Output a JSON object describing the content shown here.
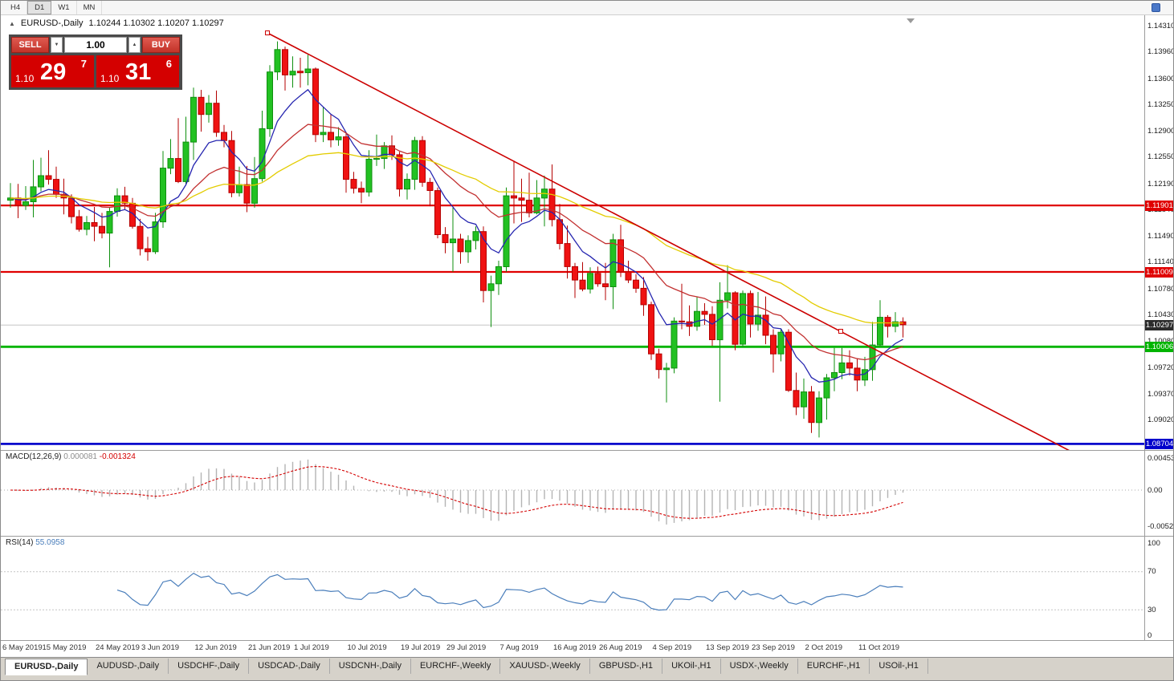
{
  "toolbar": {
    "timeframes": [
      "H4",
      "D1",
      "W1",
      "MN"
    ],
    "active_timeframe": "D1"
  },
  "chart": {
    "title": "EURUSD-,Daily",
    "ohlc": "1.10244 1.10302 1.10207 1.10297",
    "collapse_icon": "▲"
  },
  "trade_panel": {
    "sell_label": "SELL",
    "buy_label": "BUY",
    "volume": "1.00",
    "spin_up_icon": "▲",
    "spin_down_icon": "▼",
    "sell_price_prefix": "1.10",
    "sell_price_big": "29",
    "sell_price_sup": "7",
    "buy_price_prefix": "1.10",
    "buy_price_big": "31",
    "buy_price_sup": "6"
  },
  "price_axis": {
    "ticks": [
      "1.14310",
      "1.13960",
      "1.13600",
      "1.13250",
      "1.12900",
      "1.12550",
      "1.12190",
      "1.11840",
      "1.11490",
      "1.11140",
      "1.10780",
      "1.10430",
      "1.10080",
      "1.09720",
      "1.09370",
      "1.09020"
    ],
    "levels": [
      {
        "label": "1.11901",
        "price": 1.11901,
        "color": "#e00000",
        "kind": "resistance"
      },
      {
        "label": "1.11009",
        "price": 1.11009,
        "color": "#e00000",
        "kind": "resistance"
      },
      {
        "label": "1.10297",
        "price": 1.10297,
        "color": "#2b2b2b",
        "kind": "current-bid"
      },
      {
        "label": "1.10006",
        "price": 1.10006,
        "color": "#00b400",
        "kind": "support"
      },
      {
        "label": "1.08704",
        "price": 1.08704,
        "color": "#0000cc",
        "kind": "support"
      }
    ]
  },
  "macd": {
    "name": "MACD(12,26,9)",
    "value_main": "0.000081",
    "value_signal": "-0.001324",
    "axis": [
      "0.004536",
      "0.00",
      "-0.005205"
    ]
  },
  "rsi": {
    "name": "RSI(14)",
    "value": "55.0958",
    "axis": [
      "100",
      "70",
      "30",
      "0"
    ]
  },
  "date_axis": [
    {
      "label": "6 May 2019",
      "i": 0
    },
    {
      "label": "15 May 2019",
      "i": 7
    },
    {
      "label": "24 May 2019",
      "i": 14
    },
    {
      "label": "3 Jun 2019",
      "i": 20
    },
    {
      "label": "12 Jun 2019",
      "i": 27
    },
    {
      "label": "21 Jun 2019",
      "i": 34
    },
    {
      "label": "1 Jul 2019",
      "i": 40
    },
    {
      "label": "10 Jul 2019",
      "i": 47
    },
    {
      "label": "19 Jul 2019",
      "i": 54
    },
    {
      "label": "29 Jul 2019",
      "i": 60
    },
    {
      "label": "7 Aug 2019",
      "i": 67
    },
    {
      "label": "16 Aug 2019",
      "i": 74
    },
    {
      "label": "26 Aug 2019",
      "i": 80
    },
    {
      "label": "4 Sep 2019",
      "i": 87
    },
    {
      "label": "13 Sep 2019",
      "i": 94
    },
    {
      "label": "23 Sep 2019",
      "i": 100
    },
    {
      "label": "2 Oct 2019",
      "i": 107
    },
    {
      "label": "11 Oct 2019",
      "i": 114
    }
  ],
  "tabs": [
    {
      "label": "EURUSD-,Daily",
      "active": true
    },
    {
      "label": "AUDUSD-,Daily",
      "active": false
    },
    {
      "label": "USDCHF-,Daily",
      "active": false
    },
    {
      "label": "USDCAD-,Daily",
      "active": false
    },
    {
      "label": "USDCNH-,Daily",
      "active": false
    },
    {
      "label": "EURCHF-,Weekly",
      "active": false
    },
    {
      "label": "XAUUSD-,Weekly",
      "active": false
    },
    {
      "label": "GBPUSD-,H1",
      "active": false
    },
    {
      "label": "UKOil-,H1",
      "active": false
    },
    {
      "label": "USDX-,Weekly",
      "active": false
    },
    {
      "label": "EURCHF-,H1",
      "active": false
    },
    {
      "label": "USOil-,H1",
      "active": false
    }
  ],
  "chart_data": {
    "type": "candlestick",
    "symbol": "EURUSD",
    "timeframe": "Daily",
    "ohlc_current": {
      "open": 1.10244,
      "high": 1.10302,
      "low": 1.10207,
      "close": 1.10297
    },
    "y_axis_range": [
      1.086,
      1.1445
    ],
    "candles": [
      [
        1.1197,
        1.122,
        1.1187,
        1.12
      ],
      [
        1.12,
        1.1219,
        1.1173,
        1.119
      ],
      [
        1.119,
        1.1216,
        1.1184,
        1.1195
      ],
      [
        1.1195,
        1.1251,
        1.1174,
        1.1215
      ],
      [
        1.1215,
        1.1254,
        1.1209,
        1.123
      ],
      [
        1.123,
        1.1264,
        1.1218,
        1.1225
      ],
      [
        1.1225,
        1.1242,
        1.12,
        1.1205
      ],
      [
        1.1205,
        1.1226,
        1.1178,
        1.12
      ],
      [
        1.12,
        1.1205,
        1.1166,
        1.1175
      ],
      [
        1.1175,
        1.1184,
        1.1155,
        1.1158
      ],
      [
        1.1158,
        1.1176,
        1.115,
        1.1167
      ],
      [
        1.1167,
        1.1188,
        1.1142,
        1.1162
      ],
      [
        1.1162,
        1.118,
        1.1146,
        1.1153
      ],
      [
        1.1153,
        1.1188,
        1.1107,
        1.1182
      ],
      [
        1.1182,
        1.1213,
        1.1175,
        1.1203
      ],
      [
        1.1203,
        1.1215,
        1.1184,
        1.1193
      ],
      [
        1.1193,
        1.12,
        1.1159,
        1.1162
      ],
      [
        1.1162,
        1.1172,
        1.1123,
        1.1132
      ],
      [
        1.1132,
        1.1148,
        1.1116,
        1.1128
      ],
      [
        1.1128,
        1.118,
        1.1125,
        1.1168
      ],
      [
        1.1168,
        1.1263,
        1.116,
        1.124
      ],
      [
        1.124,
        1.1279,
        1.1232,
        1.1253
      ],
      [
        1.1253,
        1.1307,
        1.122,
        1.1222
      ],
      [
        1.1222,
        1.1309,
        1.1219,
        1.1275
      ],
      [
        1.1275,
        1.1348,
        1.1251,
        1.1335
      ],
      [
        1.1335,
        1.1345,
        1.1289,
        1.1312
      ],
      [
        1.1312,
        1.1338,
        1.1301,
        1.1327
      ],
      [
        1.1327,
        1.1344,
        1.1282,
        1.1288
      ],
      [
        1.1288,
        1.1298,
        1.1268,
        1.1277
      ],
      [
        1.1277,
        1.129,
        1.1201,
        1.1207
      ],
      [
        1.1207,
        1.1242,
        1.1202,
        1.1218
      ],
      [
        1.1218,
        1.1243,
        1.1181,
        1.1193
      ],
      [
        1.1193,
        1.1255,
        1.1187,
        1.1226
      ],
      [
        1.1226,
        1.1317,
        1.1222,
        1.1293
      ],
      [
        1.1293,
        1.1378,
        1.1282,
        1.1369
      ],
      [
        1.1369,
        1.141,
        1.1358,
        1.1399
      ],
      [
        1.1399,
        1.1403,
        1.1344,
        1.1365
      ],
      [
        1.1365,
        1.139,
        1.1348,
        1.137
      ],
      [
        1.137,
        1.1388,
        1.1348,
        1.1368
      ],
      [
        1.1368,
        1.1392,
        1.1351,
        1.1373
      ],
      [
        1.1373,
        1.1375,
        1.1275,
        1.1285
      ],
      [
        1.1285,
        1.1322,
        1.1275,
        1.1288
      ],
      [
        1.1288,
        1.1312,
        1.1268,
        1.1278
      ],
      [
        1.1278,
        1.1295,
        1.127,
        1.1282
      ],
      [
        1.1282,
        1.1288,
        1.1207,
        1.1225
      ],
      [
        1.1225,
        1.1235,
        1.1206,
        1.1213
      ],
      [
        1.1213,
        1.1222,
        1.1193,
        1.1208
      ],
      [
        1.1208,
        1.1264,
        1.1202,
        1.1252
      ],
      [
        1.1252,
        1.1285,
        1.1243,
        1.1253
      ],
      [
        1.1253,
        1.1275,
        1.1239,
        1.127
      ],
      [
        1.127,
        1.1284,
        1.1251,
        1.1258
      ],
      [
        1.1258,
        1.1262,
        1.1202,
        1.1212
      ],
      [
        1.1212,
        1.1233,
        1.1198,
        1.1225
      ],
      [
        1.1225,
        1.1282,
        1.1211,
        1.1277
      ],
      [
        1.1277,
        1.1283,
        1.1215,
        1.1221
      ],
      [
        1.1221,
        1.1227,
        1.1189,
        1.121
      ],
      [
        1.121,
        1.1214,
        1.1146,
        1.1151
      ],
      [
        1.1151,
        1.1161,
        1.1126,
        1.114
      ],
      [
        1.114,
        1.1187,
        1.1101,
        1.1145
      ],
      [
        1.1145,
        1.1152,
        1.1112,
        1.1128
      ],
      [
        1.1128,
        1.115,
        1.1113,
        1.1143
      ],
      [
        1.1143,
        1.1162,
        1.1131,
        1.1155
      ],
      [
        1.1155,
        1.1162,
        1.106,
        1.1076
      ],
      [
        1.1076,
        1.1096,
        1.1027,
        1.1085
      ],
      [
        1.1085,
        1.1116,
        1.107,
        1.1108
      ],
      [
        1.1108,
        1.1214,
        1.1101,
        1.1203
      ],
      [
        1.1203,
        1.125,
        1.1166,
        1.12
      ],
      [
        1.12,
        1.1226,
        1.1168,
        1.1197
      ],
      [
        1.1197,
        1.1234,
        1.1174,
        1.118
      ],
      [
        1.118,
        1.1224,
        1.1178,
        1.12
      ],
      [
        1.12,
        1.123,
        1.1162,
        1.1212
      ],
      [
        1.1212,
        1.1245,
        1.1162,
        1.1171
      ],
      [
        1.1171,
        1.1192,
        1.1131,
        1.1139
      ],
      [
        1.1139,
        1.1163,
        1.1092,
        1.1108
      ],
      [
        1.1108,
        1.1113,
        1.1066,
        1.109
      ],
      [
        1.109,
        1.1114,
        1.1075,
        1.1078
      ],
      [
        1.1078,
        1.1107,
        1.1072,
        1.1099
      ],
      [
        1.1099,
        1.1108,
        1.1081,
        1.1085
      ],
      [
        1.1085,
        1.1113,
        1.1063,
        1.1081
      ],
      [
        1.1081,
        1.1152,
        1.1051,
        1.1144
      ],
      [
        1.1144,
        1.1164,
        1.1094,
        1.1101
      ],
      [
        1.1101,
        1.1116,
        1.1086,
        1.109
      ],
      [
        1.109,
        1.1098,
        1.1073,
        1.1079
      ],
      [
        1.1079,
        1.1094,
        1.1042,
        1.1057
      ],
      [
        1.1057,
        1.1061,
        1.0983,
        1.0991
      ],
      [
        1.0991,
        1.0998,
        1.0958,
        1.097
      ],
      [
        1.097,
        1.0979,
        1.0926,
        1.0972
      ],
      [
        1.0972,
        1.104,
        1.0965,
        1.1035
      ],
      [
        1.1035,
        1.1085,
        1.1024,
        1.1034
      ],
      [
        1.1034,
        1.1056,
        1.1015,
        1.1028
      ],
      [
        1.1028,
        1.1067,
        1.1022,
        1.1048
      ],
      [
        1.1048,
        1.1059,
        1.103,
        1.1044
      ],
      [
        1.1044,
        1.1055,
        1.1002,
        1.101
      ],
      [
        1.101,
        1.1087,
        1.0927,
        1.1063
      ],
      [
        1.1063,
        1.111,
        1.1052,
        1.1073
      ],
      [
        1.1073,
        1.1075,
        1.0996,
        1.1004
      ],
      [
        1.1004,
        1.1076,
        1.1001,
        1.1072
      ],
      [
        1.1072,
        1.1076,
        1.1013,
        1.1031
      ],
      [
        1.1031,
        1.1074,
        1.1022,
        1.1043
      ],
      [
        1.1043,
        1.1068,
        1.1004,
        1.1016
      ],
      [
        1.1016,
        1.1024,
        1.0966,
        1.0991
      ],
      [
        1.0991,
        1.1024,
        1.0981,
        1.102
      ],
      [
        1.102,
        1.1024,
        1.094,
        1.0942
      ],
      [
        1.0942,
        1.0966,
        1.0909,
        1.092
      ],
      [
        1.092,
        1.0958,
        1.0904,
        1.094
      ],
      [
        1.094,
        1.0948,
        1.0885,
        1.0899
      ],
      [
        1.0899,
        1.0941,
        1.0879,
        1.0932
      ],
      [
        1.0932,
        1.0964,
        1.0903,
        1.0959
      ],
      [
        1.0959,
        1.0999,
        1.0941,
        1.0966
      ],
      [
        1.0966,
        1.0999,
        1.0957,
        1.0979
      ],
      [
        1.0979,
        1.0996,
        1.0962,
        1.0972
      ],
      [
        1.0972,
        1.0985,
        1.0941,
        1.0956
      ],
      [
        1.0956,
        1.0987,
        1.0948,
        1.097
      ],
      [
        1.097,
        1.1034,
        1.0955,
        1.1003
      ],
      [
        1.1003,
        1.1063,
        1.1002,
        1.104
      ],
      [
        1.104,
        1.1043,
        1.1013,
        1.1028
      ],
      [
        1.1028,
        1.1047,
        1.102,
        1.1034
      ],
      [
        1.1034,
        1.104,
        1.1013,
        1.103
      ]
    ],
    "moving_averages": [
      {
        "name": "fast-ma",
        "color": "#2626b0",
        "period": 8
      },
      {
        "name": "medium-ma",
        "color": "#c23030",
        "period": 20
      },
      {
        "name": "slow-ma",
        "color": "#e3cc00",
        "period": 45
      }
    ],
    "trendline": {
      "type": "descending-resistance",
      "color": "#cc0000"
    },
    "horizontal_levels": [
      1.11901,
      1.11009,
      1.10006,
      1.08704
    ],
    "indicators": [
      {
        "name": "MACD",
        "params": [
          12,
          26,
          9
        ],
        "values": [
          8.1e-05,
          -0.001324
        ],
        "axis_max": 0.004536,
        "axis_min": -0.005205
      },
      {
        "name": "RSI",
        "params": [
          14
        ],
        "value": 55.0958,
        "levels": [
          70,
          30
        ]
      }
    ]
  }
}
